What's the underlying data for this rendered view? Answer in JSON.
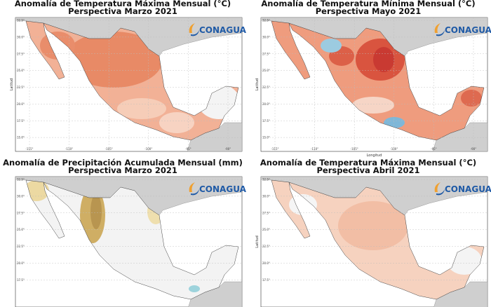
{
  "panels": [
    {
      "title": [
        "Anomalía de Temperatura Máxima Mensual (°C)",
        "Perspectiva Marzo 2021"
      ],
      "logo": "CONAGUA",
      "ylabel": "Latitud",
      "yticks": [
        "32.5°",
        "30.0°",
        "27.5°",
        "25.0°",
        "22.5°",
        "20.0°",
        "17.5°",
        "15.0°"
      ],
      "xticks": [
        "-115°",
        "-110°",
        "-105°",
        "-100°",
        "-95°",
        "-90°"
      ]
    },
    {
      "title": [
        "Anomalía de Temperatura Mínima Mensual (°C)",
        "Perspectiva Mayo 2021"
      ],
      "logo": "CONAGUA",
      "ylabel": "Latitud",
      "xlabel": "Longitud",
      "yticks": [
        "32.5°",
        "30.0°",
        "27.5°",
        "25.0°",
        "22.5°",
        "20.0°",
        "17.5°",
        "15.0°"
      ],
      "xticks": [
        "-115°",
        "-110°",
        "-105°",
        "-100°",
        "-95°",
        "-90°"
      ]
    },
    {
      "title": [
        "Anomalía de Precipitación Acumulada Mensual (mm)",
        "Perspectiva Marzo 2021"
      ],
      "logo": "CONAGUA",
      "yticks": [
        "32.5°",
        "30.0°",
        "27.5°",
        "25.0°",
        "22.5°",
        "20.0°",
        "17.5°"
      ],
      "xticks": []
    },
    {
      "title": [
        "Anomalía de Temperatura Máxima Mensual (°C)",
        "Perspectiva Abril 2021"
      ],
      "logo": "CONAGUA",
      "ylabel": "Latitud",
      "yticks": [
        "32.5°",
        "30.0°",
        "27.5°",
        "25.0°",
        "22.5°",
        "20.0°",
        "17.5°"
      ],
      "xticks": []
    }
  ]
}
